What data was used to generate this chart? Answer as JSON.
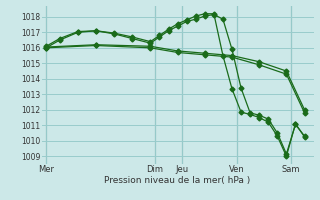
{
  "xlabel": "Pression niveau de la mer( hPa )",
  "background_color": "#cce8e8",
  "grid_color": "#99cccc",
  "line_color": "#1a6b1a",
  "ylim": [
    1008.5,
    1018.7
  ],
  "yticks": [
    1009,
    1010,
    1011,
    1012,
    1013,
    1014,
    1015,
    1016,
    1017,
    1018
  ],
  "xlim": [
    0,
    30
  ],
  "day_labels": [
    "Mer",
    "Dim",
    "Jeu",
    "Ven",
    "Sam"
  ],
  "day_positions": [
    0.5,
    12.5,
    15.5,
    21.5,
    27.5
  ],
  "vline_positions": [
    0.5,
    12.5,
    15.5,
    21.5,
    27.5
  ],
  "line1_x": [
    0.5,
    2,
    4,
    6,
    8,
    10,
    12,
    13,
    14,
    15,
    16,
    17,
    18,
    19,
    20,
    21,
    22,
    23,
    24,
    25,
    26,
    27,
    28,
    29
  ],
  "line1_y": [
    1016.0,
    1016.5,
    1017.0,
    1017.1,
    1016.9,
    1016.6,
    1016.3,
    1016.7,
    1017.1,
    1017.4,
    1017.7,
    1017.85,
    1018.05,
    1018.15,
    1017.85,
    1015.9,
    1013.4,
    1011.8,
    1011.65,
    1011.4,
    1010.5,
    1009.15,
    1011.05,
    1010.3
  ],
  "line2_x": [
    0.5,
    2,
    4,
    6,
    8,
    10,
    12,
    13,
    14,
    15,
    16,
    17,
    18,
    19,
    20,
    21,
    22,
    23,
    24,
    25,
    26,
    27,
    28,
    29
  ],
  "line2_y": [
    1016.1,
    1016.6,
    1017.05,
    1017.1,
    1016.95,
    1016.7,
    1016.4,
    1016.8,
    1017.2,
    1017.55,
    1017.8,
    1018.05,
    1018.2,
    1018.2,
    1015.5,
    1013.35,
    1011.85,
    1011.7,
    1011.5,
    1011.2,
    1010.3,
    1009.0,
    1011.1,
    1010.25
  ],
  "line3_x": [
    0.5,
    6,
    12,
    15,
    18,
    21,
    24,
    27,
    29
  ],
  "line3_y": [
    1016.05,
    1016.2,
    1016.1,
    1015.8,
    1015.65,
    1015.5,
    1015.1,
    1014.5,
    1012.0
  ],
  "line4_x": [
    0.5,
    6,
    12,
    15,
    18,
    21,
    24,
    27,
    29
  ],
  "line4_y": [
    1016.0,
    1016.15,
    1016.0,
    1015.7,
    1015.55,
    1015.4,
    1014.9,
    1014.3,
    1011.8
  ]
}
